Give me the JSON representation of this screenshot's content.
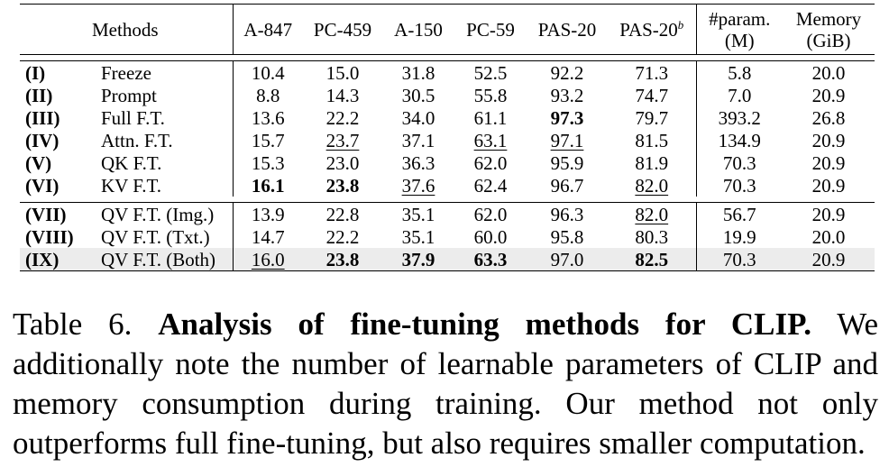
{
  "table": {
    "headers": {
      "methods": "Methods",
      "a847": "A-847",
      "pc459": "PC-459",
      "a150": "A-150",
      "pc59": "PC-59",
      "pas20": "PAS-20",
      "pas20b": "PAS-20",
      "pas20b_sup": "b",
      "param_line1": "#param.",
      "param_line2": "(M)",
      "mem_line1": "Memory",
      "mem_line2": "(GiB)"
    },
    "rows": [
      {
        "id": "(I)",
        "method": "Freeze",
        "a847": "10.4",
        "pc459": "15.0",
        "a150": "31.8",
        "pc59": "52.5",
        "pas20": "92.2",
        "pas20b": "71.3",
        "param": "5.8",
        "mem": "20.0"
      },
      {
        "id": "(II)",
        "method": "Prompt",
        "a847": "8.8",
        "pc459": "14.3",
        "a150": "30.5",
        "pc59": "55.8",
        "pas20": "93.2",
        "pas20b": "74.7",
        "param": "7.0",
        "mem": "20.9"
      },
      {
        "id": "(III)",
        "method": "Full F.T.",
        "a847": "13.6",
        "pc459": "22.2",
        "a150": "34.0",
        "pc59": "61.1",
        "pas20": "97.3",
        "pas20b": "79.7",
        "param": "393.2",
        "mem": "26.8"
      },
      {
        "id": "(IV)",
        "method": "Attn. F.T.",
        "a847": "15.7",
        "pc459": "23.7",
        "a150": "37.1",
        "pc59": "63.1",
        "pas20": "97.1",
        "pas20b": "81.5",
        "param": "134.9",
        "mem": "20.9"
      },
      {
        "id": "(V)",
        "method": "QK F.T.",
        "a847": "15.3",
        "pc459": "23.0",
        "a150": "36.3",
        "pc59": "62.0",
        "pas20": "95.9",
        "pas20b": "81.9",
        "param": "70.3",
        "mem": "20.9"
      },
      {
        "id": "(VI)",
        "method": "KV F.T.",
        "a847": "16.1",
        "pc459": "23.8",
        "a150": "37.6",
        "pc59": "62.4",
        "pas20": "96.7",
        "pas20b": "82.0",
        "param": "70.3",
        "mem": "20.9"
      },
      {
        "id": "(VII)",
        "method": "QV F.T. (Img.)",
        "a847": "13.9",
        "pc459": "22.8",
        "a150": "35.1",
        "pc59": "62.0",
        "pas20": "96.3",
        "pas20b": "82.0",
        "param": "56.7",
        "mem": "20.9"
      },
      {
        "id": "(VIII)",
        "method": "QV F.T. (Txt.)",
        "a847": "14.7",
        "pc459": "22.2",
        "a150": "35.1",
        "pc59": "60.0",
        "pas20": "95.8",
        "pas20b": "80.3",
        "param": "19.9",
        "mem": "20.0"
      },
      {
        "id": "(IX)",
        "method": "QV F.T. (Both)",
        "a847": "16.0",
        "pc459": "23.8",
        "a150": "37.9",
        "pc59": "63.3",
        "pas20": "97.0",
        "pas20b": "82.5",
        "param": "70.3",
        "mem": "20.9"
      }
    ]
  },
  "caption": {
    "label": "Table 6.",
    "title": "Analysis of fine-tuning methods for CLIP.",
    "body": "We additionally note the number of learnable parameters of CLIP and memory consumption during training. Our method not only outperforms full fine-tuning, but also requires smaller computation."
  }
}
